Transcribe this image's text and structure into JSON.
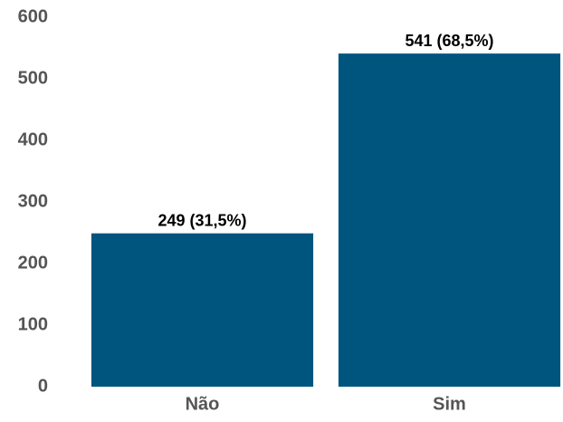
{
  "chart_data": {
    "type": "bar",
    "categories": [
      "Não",
      "Sim"
    ],
    "values": [
      249,
      541
    ],
    "value_labels": [
      "249 (31,5%)",
      "541 (68,5%)"
    ],
    "color": "#00557f",
    "ylim": [
      0,
      600
    ],
    "yticks": [
      0,
      100,
      200,
      300,
      400,
      500,
      600
    ],
    "grid": false
  }
}
